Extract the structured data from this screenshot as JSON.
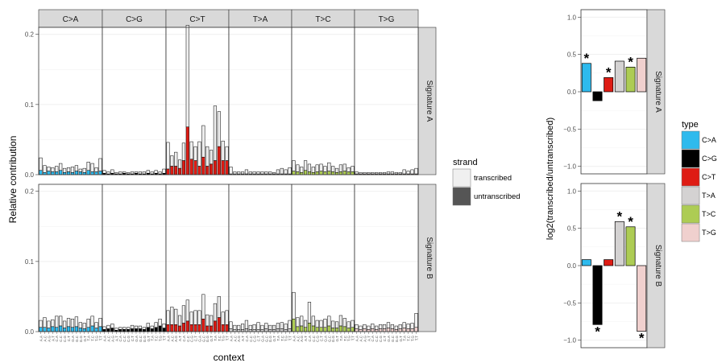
{
  "chart_data": [
    {
      "type": "bar",
      "subtype": "stacked-faceted",
      "title": "",
      "xlabel": "context",
      "ylabel": "Relative contribution",
      "ylim": [
        0,
        0.21
      ],
      "yticks": [
        0.0,
        0.1,
        0.2
      ],
      "ytick_labels": [
        "0.0",
        "0.1",
        "0.2"
      ],
      "grid": true,
      "facet_columns": [
        "C>A",
        "C>G",
        "C>T",
        "T>A",
        "T>C",
        "T>G"
      ],
      "facet_rows": [
        "Signature A",
        "Signature B"
      ],
      "contexts": [
        "A.A",
        "A.C",
        "A.G",
        "A.T",
        "C.A",
        "C.C",
        "C.G",
        "C.T",
        "G.A",
        "G.C",
        "G.G",
        "G.T",
        "T.A",
        "T.C",
        "T.G",
        "T.T"
      ],
      "legend": {
        "title": "strand",
        "position": "right",
        "items": [
          {
            "label": "transcribed",
            "color": "#f0f0f0"
          },
          {
            "label": "untranscribed",
            "color": "#555555"
          }
        ]
      },
      "colors": {
        "C>A": "#2EBAED",
        "C>G": "#000000",
        "C>T": "#DE1C14",
        "T>A": "#D4D2D2",
        "T>C": "#ADCC54",
        "T>G": "#F0D0CE",
        "transcribed_tint": "#f0f0f0"
      },
      "series": [
        {
          "signature": "Signature A",
          "untranscribed": [
            [
              0.006,
              0.003,
              0.005,
              0.004,
              0.004,
              0.006,
              0.003,
              0.004,
              0.003,
              0.005,
              0.004,
              0.003,
              0.006,
              0.004,
              0.004,
              0.005
            ],
            [
              0.002,
              0.001,
              0.002,
              0.001,
              0.001,
              0.002,
              0.001,
              0.001,
              0.002,
              0.001,
              0.001,
              0.002,
              0.001,
              0.002,
              0.001,
              0.002
            ],
            [
              0.008,
              0.012,
              0.012,
              0.009,
              0.02,
              0.068,
              0.022,
              0.02,
              0.012,
              0.025,
              0.012,
              0.015,
              0.02,
              0.04,
              0.02,
              0.02
            ],
            [
              0.001,
              0.001,
              0.001,
              0.001,
              0.001,
              0.001,
              0.001,
              0.001,
              0.001,
              0.001,
              0.001,
              0.001,
              0.001,
              0.001,
              0.001,
              0.001
            ],
            [
              0.005,
              0.004,
              0.003,
              0.006,
              0.004,
              0.003,
              0.004,
              0.005,
              0.004,
              0.005,
              0.004,
              0.003,
              0.004,
              0.005,
              0.004,
              0.004
            ],
            [
              0.001,
              0.001,
              0.001,
              0.001,
              0.001,
              0.001,
              0.001,
              0.001,
              0.001,
              0.001,
              0.001,
              0.001,
              0.001,
              0.001,
              0.001,
              0.001
            ]
          ],
          "transcribed": [
            [
              0.018,
              0.01,
              0.006,
              0.006,
              0.008,
              0.01,
              0.006,
              0.006,
              0.008,
              0.008,
              0.004,
              0.006,
              0.012,
              0.012,
              0.006,
              0.018
            ],
            [
              0.004,
              0.003,
              0.005,
              0.002,
              0.003,
              0.002,
              0.002,
              0.003,
              0.002,
              0.003,
              0.003,
              0.004,
              0.003,
              0.004,
              0.003,
              0.006
            ],
            [
              0.038,
              0.015,
              0.02,
              0.012,
              0.025,
              0.145,
              0.025,
              0.02,
              0.035,
              0.045,
              0.028,
              0.02,
              0.078,
              0.05,
              0.028,
              0.02
            ],
            [
              0.01,
              0.003,
              0.003,
              0.003,
              0.006,
              0.003,
              0.003,
              0.003,
              0.003,
              0.003,
              0.003,
              0.002,
              0.006,
              0.008,
              0.006,
              0.009
            ],
            [
              0.015,
              0.01,
              0.008,
              0.014,
              0.011,
              0.008,
              0.01,
              0.01,
              0.008,
              0.012,
              0.008,
              0.006,
              0.01,
              0.01,
              0.006,
              0.008
            ],
            [
              0.003,
              0.002,
              0.002,
              0.002,
              0.002,
              0.002,
              0.002,
              0.002,
              0.003,
              0.003,
              0.002,
              0.002,
              0.006,
              0.004,
              0.006,
              0.008
            ]
          ]
        },
        {
          "signature": "Signature B",
          "untranscribed": [
            [
              0.006,
              0.006,
              0.005,
              0.007,
              0.006,
              0.008,
              0.005,
              0.007,
              0.006,
              0.007,
              0.005,
              0.004,
              0.006,
              0.008,
              0.005,
              0.007
            ],
            [
              0.003,
              0.004,
              0.005,
              0.002,
              0.003,
              0.003,
              0.003,
              0.004,
              0.004,
              0.004,
              0.003,
              0.006,
              0.004,
              0.006,
              0.008,
              0.005
            ],
            [
              0.01,
              0.01,
              0.01,
              0.008,
              0.012,
              0.015,
              0.01,
              0.01,
              0.01,
              0.018,
              0.008,
              0.008,
              0.015,
              0.02,
              0.01,
              0.01
            ],
            [
              0.004,
              0.003,
              0.003,
              0.003,
              0.004,
              0.003,
              0.003,
              0.003,
              0.003,
              0.004,
              0.003,
              0.003,
              0.004,
              0.004,
              0.003,
              0.004
            ],
            [
              0.018,
              0.007,
              0.008,
              0.006,
              0.012,
              0.008,
              0.006,
              0.006,
              0.006,
              0.008,
              0.005,
              0.005,
              0.008,
              0.007,
              0.005,
              0.006
            ],
            [
              0.004,
              0.003,
              0.004,
              0.003,
              0.004,
              0.003,
              0.004,
              0.004,
              0.005,
              0.004,
              0.003,
              0.004,
              0.005,
              0.004,
              0.004,
              0.006
            ]
          ],
          "transcribed": [
            [
              0.01,
              0.014,
              0.01,
              0.01,
              0.016,
              0.014,
              0.01,
              0.012,
              0.012,
              0.014,
              0.008,
              0.008,
              0.012,
              0.014,
              0.008,
              0.012
            ],
            [
              0.004,
              0.005,
              0.006,
              0.003,
              0.003,
              0.003,
              0.003,
              0.005,
              0.004,
              0.004,
              0.003,
              0.006,
              0.004,
              0.007,
              0.01,
              0.006
            ],
            [
              0.02,
              0.025,
              0.022,
              0.015,
              0.025,
              0.03,
              0.018,
              0.02,
              0.02,
              0.035,
              0.016,
              0.015,
              0.025,
              0.03,
              0.018,
              0.02
            ],
            [
              0.01,
              0.006,
              0.006,
              0.008,
              0.012,
              0.006,
              0.007,
              0.01,
              0.006,
              0.008,
              0.006,
              0.006,
              0.008,
              0.009,
              0.008,
              0.012
            ],
            [
              0.038,
              0.013,
              0.014,
              0.01,
              0.03,
              0.014,
              0.01,
              0.01,
              0.012,
              0.014,
              0.01,
              0.009,
              0.015,
              0.012,
              0.009,
              0.01
            ],
            [
              0.006,
              0.005,
              0.006,
              0.005,
              0.007,
              0.005,
              0.006,
              0.006,
              0.008,
              0.006,
              0.005,
              0.006,
              0.008,
              0.007,
              0.008,
              0.02
            ]
          ]
        }
      ]
    },
    {
      "type": "bar",
      "title": "",
      "xlabel": "",
      "ylabel": "log2(transcribed/untranscribed)",
      "ylim": [
        -1.1,
        1.1
      ],
      "yticks": [
        -1.0,
        -0.5,
        0.0,
        0.5,
        1.0
      ],
      "ytick_labels": [
        "−1.0",
        "−0.5",
        "0.0",
        "0.5",
        "1.0"
      ],
      "grid": true,
      "categories": [
        "C>A",
        "C>G",
        "C>T",
        "T>A",
        "T>C",
        "T>G"
      ],
      "legend": {
        "title": "type",
        "position": "right",
        "items": [
          {
            "label": "C>A",
            "color": "#2EBAED"
          },
          {
            "label": "C>G",
            "color": "#000000"
          },
          {
            "label": "C>T",
            "color": "#DE1C14"
          },
          {
            "label": "T>A",
            "color": "#D4D2D2"
          },
          {
            "label": "T>C",
            "color": "#ADCC54"
          },
          {
            "label": "T>G",
            "color": "#F0D0CE"
          }
        ]
      },
      "panels": [
        {
          "label": "Signature A",
          "values": [
            0.38,
            -0.12,
            0.19,
            0.41,
            0.33,
            0.45
          ],
          "significant": [
            true,
            false,
            true,
            false,
            true,
            false
          ]
        },
        {
          "label": "Signature B",
          "values": [
            0.08,
            -0.79,
            0.08,
            0.59,
            0.52,
            -0.88
          ],
          "significant": [
            false,
            true,
            false,
            true,
            true,
            true
          ]
        }
      ],
      "significance_marker": "*"
    }
  ]
}
